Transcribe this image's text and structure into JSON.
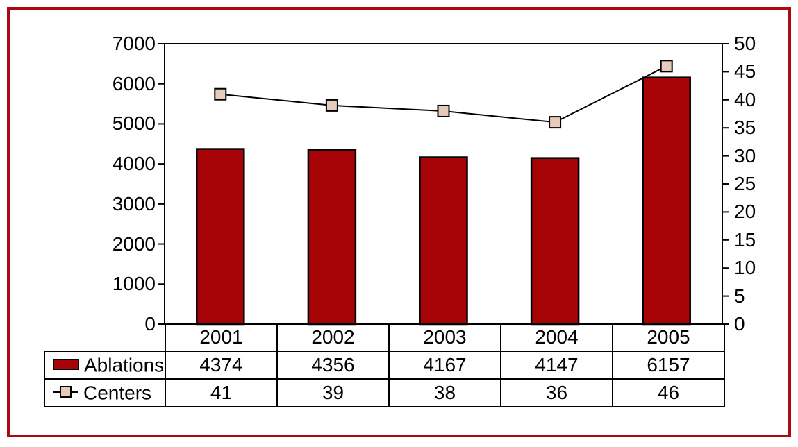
{
  "figure": {
    "background": "#FFFFFF",
    "border_color": "#AA0B12"
  },
  "chart_data": {
    "type": "bar",
    "subtype": "combo-bar-line-with-data-table",
    "title": "",
    "xlabel": "",
    "ylabel_left": "",
    "ylabel_right": "",
    "grid": false,
    "legend_position": "table-left",
    "categories": [
      "2001",
      "2002",
      "2003",
      "2004",
      "2005"
    ],
    "series": [
      {
        "name": "Ablations",
        "type": "bar",
        "axis": "left",
        "color": "#A70408",
        "outline_color": "#000000",
        "values": [
          4374,
          4356,
          4167,
          4147,
          6157
        ]
      },
      {
        "name": "Centers",
        "type": "line",
        "axis": "right",
        "line_color": "#000000",
        "marker": "square",
        "marker_fill": "#E6CABB",
        "marker_outline": "#000000",
        "values": [
          41,
          39,
          38,
          36,
          46
        ]
      }
    ],
    "y_left_axis": {
      "min": 0,
      "max": 7000,
      "step": 1000,
      "ticks": [
        7000,
        6000,
        5000,
        4000,
        3000,
        2000,
        1000,
        0
      ]
    },
    "y_right_axis": {
      "min": 0,
      "max": 50,
      "step": 5,
      "ticks": [
        50,
        45,
        40,
        35,
        30,
        25,
        20,
        15,
        10,
        5,
        0
      ]
    }
  }
}
